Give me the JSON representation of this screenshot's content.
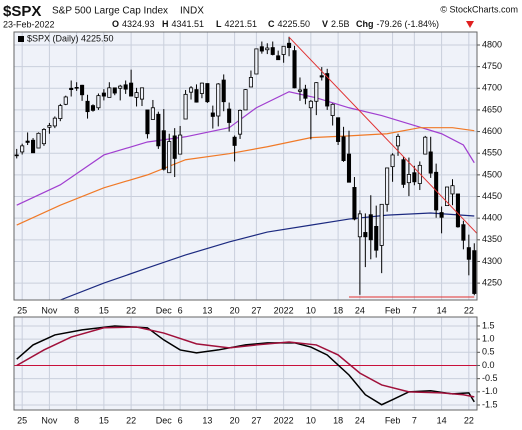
{
  "header": {
    "symbol": "$SPX",
    "name": "S&P 500 Large Cap Index",
    "exchange": "INDX",
    "copyright": "© StockCharts.com",
    "date": "23-Feb-2022",
    "quote": [
      {
        "label": "O",
        "value": "4324.93"
      },
      {
        "label": "H",
        "value": "4341.51"
      },
      {
        "label": "L",
        "value": "4221.51"
      },
      {
        "label": "C",
        "value": "4225.50"
      },
      {
        "label": "V",
        "value": "2.5B"
      },
      {
        "label": "Chg",
        "value": "-79.26 (-1.84%)"
      }
    ]
  },
  "chart_data": [
    {
      "type": "candlestick",
      "legend": "$SPX (Daily) 4225.50",
      "color": "#000000",
      "x": [
        0,
        1,
        2,
        3,
        4,
        5,
        6,
        7,
        8,
        9,
        10,
        11,
        12,
        13,
        14,
        15,
        16,
        17,
        18,
        19,
        20,
        21,
        22,
        23,
        24,
        25,
        26,
        27,
        28,
        29,
        30,
        31,
        32,
        33,
        34,
        35,
        36,
        37,
        38,
        39,
        40,
        41,
        42,
        43,
        44,
        45,
        46,
        47,
        48,
        49,
        50,
        51,
        52,
        53,
        54,
        55,
        56,
        57,
        58,
        59,
        60,
        61,
        62,
        63,
        64,
        65,
        66,
        67,
        68,
        69,
        70,
        71,
        72,
        73,
        74,
        75,
        76,
        77,
        78,
        79,
        80,
        81,
        82,
        83,
        84
      ],
      "open": [
        4546,
        4553,
        4578,
        4580,
        4562,
        4572,
        4610,
        4613,
        4630,
        4663,
        4700,
        4701,
        4707,
        4670,
        4660,
        4655,
        4689,
        4679,
        4701,
        4700,
        4708,
        4712,
        4679,
        4675,
        4650,
        4628,
        4640,
        4602,
        4505,
        4590,
        4548,
        4629,
        4691,
        4697,
        4688,
        4711,
        4643,
        4636,
        4719,
        4652,
        4587,
        4594,
        4650,
        4703,
        4733,
        4796,
        4789,
        4794,
        4775,
        4778,
        4804,
        4787,
        4693,
        4698,
        4655,
        4670,
        4729,
        4734,
        4637,
        4632,
        4588,
        4548,
        4471,
        4357,
        4367,
        4408,
        4381,
        4337,
        4432,
        4519,
        4567,
        4535,
        4482,
        4505,
        4480,
        4548,
        4553,
        4506,
        4413,
        4429,
        4456,
        4456,
        4385,
        4332,
        4325
      ],
      "high": [
        4560,
        4572,
        4598,
        4585,
        4598,
        4608,
        4620,
        4635,
        4664,
        4683,
        4718,
        4714,
        4708,
        4685,
        4663,
        4688,
        4698,
        4714,
        4701,
        4708,
        4718,
        4743,
        4701,
        4702,
        4650,
        4673,
        4646,
        4652,
        4595,
        4608,
        4613,
        4696,
        4705,
        4709,
        4713,
        4711,
        4660,
        4712,
        4732,
        4667,
        4591,
        4651,
        4698,
        4741,
        4791,
        4808,
        4804,
        4808,
        4787,
        4797,
        4819,
        4798,
        4725,
        4708,
        4673,
        4714,
        4749,
        4745,
        4665,
        4632,
        4611,
        4602,
        4495,
        4418,
        4411,
        4453,
        4429,
        4432,
        4516,
        4550,
        4595,
        4542,
        4540,
        4521,
        4531,
        4590,
        4588,
        4526,
        4427,
        4472,
        4490,
        4456,
        4394,
        4362,
        4342
      ],
      "low": [
        4538,
        4547,
        4569,
        4551,
        4562,
        4567,
        4595,
        4608,
        4624,
        4661,
        4681,
        4694,
        4671,
        4630,
        4646,
        4650,
        4672,
        4679,
        4684,
        4672,
        4687,
        4682,
        4658,
        4659,
        4584,
        4628,
        4560,
        4510,
        4505,
        4495,
        4547,
        4629,
        4674,
        4667,
        4677,
        4666,
        4607,
        4612,
        4647,
        4600,
        4531,
        4583,
        4651,
        4703,
        4733,
        4780,
        4779,
        4776,
        4766,
        4759,
        4774,
        4700,
        4671,
        4663,
        4582,
        4638,
        4718,
        4650,
        4614,
        4569,
        4530,
        4483,
        4395,
        4223,
        4287,
        4305,
        4309,
        4273,
        4415,
        4484,
        4544,
        4470,
        4451,
        4476,
        4465,
        4548,
        4493,
        4401,
        4365,
        4429,
        4430,
        4378,
        4328,
        4268,
        4222
      ],
      "close": [
        4545,
        4567,
        4575,
        4551,
        4596,
        4605,
        4614,
        4631,
        4660,
        4680,
        4697,
        4702,
        4685,
        4646,
        4649,
        4683,
        4682,
        4701,
        4689,
        4705,
        4698,
        4682,
        4690,
        4701,
        4595,
        4655,
        4567,
        4513,
        4577,
        4538,
        4592,
        4686,
        4701,
        4668,
        4712,
        4669,
        4635,
        4710,
        4669,
        4621,
        4568,
        4649,
        4697,
        4725,
        4791,
        4786,
        4793,
        4778,
        4766,
        4797,
        4794,
        4701,
        4696,
        4677,
        4670,
        4713,
        4726,
        4659,
        4663,
        4577,
        4533,
        4483,
        4398,
        4410,
        4357,
        4350,
        4326,
        4432,
        4516,
        4546,
        4589,
        4478,
        4501,
        4484,
        4522,
        4587,
        4504,
        4419,
        4402,
        4472,
        4475,
        4380,
        4349,
        4305,
        4226
      ],
      "overlays": [
        {
          "color": "#a13fd0",
          "x": [
            0,
            8,
            16,
            24,
            31,
            39,
            44,
            50,
            55,
            61,
            67,
            72,
            78,
            82,
            84
          ],
          "values": [
            4430,
            4477,
            4546,
            4576,
            4588,
            4609,
            4655,
            4692,
            4678,
            4655,
            4637,
            4618,
            4595,
            4569,
            4528
          ]
        },
        {
          "color": "#f07a28",
          "x": [
            0,
            8,
            16,
            24,
            31,
            39,
            46,
            54,
            61,
            68,
            74,
            80,
            84
          ],
          "values": [
            4384,
            4430,
            4470,
            4500,
            4535,
            4549,
            4565,
            4586,
            4590,
            4595,
            4609,
            4609,
            4602
          ]
        },
        {
          "color": "#1c2a80",
          "x": [
            8,
            16,
            24,
            31,
            39,
            46,
            54,
            61,
            68,
            76,
            84
          ],
          "values": [
            4211,
            4250,
            4285,
            4315,
            4345,
            4368,
            4384,
            4398,
            4407,
            4412,
            4405
          ]
        }
      ],
      "trendlines": [
        {
          "color": "#e03030",
          "x": [
            50,
            86
          ],
          "values": [
            4818,
            4345
          ]
        },
        {
          "color": "#e03030",
          "x": [
            61,
            84
          ],
          "values": [
            4218,
            4218
          ]
        }
      ],
      "xlim": [
        -0.5,
        84.5
      ],
      "xticks": [
        {
          "value": 1,
          "label": "25"
        },
        {
          "value": 6,
          "label": "Nov"
        },
        {
          "value": 11,
          "label": "8"
        },
        {
          "value": 16,
          "label": "15"
        },
        {
          "value": 21,
          "label": "22"
        },
        {
          "value": 27,
          "label": "Dec"
        },
        {
          "value": 30,
          "label": "6"
        },
        {
          "value": 35,
          "label": "13"
        },
        {
          "value": 40,
          "label": "20"
        },
        {
          "value": 44,
          "label": "27"
        },
        {
          "value": 49,
          "label": "2022"
        },
        {
          "value": 54,
          "label": "10"
        },
        {
          "value": 59,
          "label": "18"
        },
        {
          "value": 63,
          "label": "24"
        },
        {
          "value": 69,
          "label": "Feb"
        },
        {
          "value": 73,
          "label": "7"
        },
        {
          "value": 78,
          "label": "14"
        },
        {
          "value": 83,
          "label": "22"
        }
      ],
      "ylim": [
        4211,
        4830
      ],
      "yticks": [
        4250,
        4300,
        4350,
        4400,
        4450,
        4500,
        4550,
        4600,
        4650,
        4700,
        4750,
        4800
      ],
      "grid": true
    },
    {
      "type": "line",
      "series": [
        {
          "color": "#000000",
          "x": [
            0,
            3,
            7,
            12,
            18,
            24,
            27,
            30,
            33,
            37,
            42,
            46,
            51,
            54,
            57,
            61,
            64,
            67,
            69,
            72,
            76,
            80,
            83,
            84
          ],
          "values": [
            0.24,
            0.78,
            1.16,
            1.35,
            1.5,
            1.43,
            0.97,
            0.59,
            0.48,
            0.59,
            0.78,
            0.86,
            0.86,
            0.7,
            0.4,
            -0.36,
            -1.11,
            -1.49,
            -1.3,
            -1.0,
            -0.96,
            -1.08,
            -1.04,
            -1.38
          ]
        },
        {
          "color": "#a0103a",
          "x": [
            0,
            5,
            10,
            16,
            22,
            27,
            33,
            39,
            44,
            50,
            55,
            59,
            63,
            67,
            72,
            78,
            82,
            84
          ],
          "values": [
            0,
            0.59,
            1.08,
            1.43,
            1.46,
            1.23,
            0.82,
            0.67,
            0.78,
            0.89,
            0.78,
            0.4,
            -0.29,
            -0.74,
            -1.0,
            -1.04,
            -1.11,
            -1.19
          ]
        }
      ],
      "reference_line": {
        "value": 0,
        "color": "#c8103a"
      },
      "xlim": [
        -0.5,
        84.5
      ],
      "xticks": [
        {
          "value": 1,
          "label": "25"
        },
        {
          "value": 6,
          "label": "Nov"
        },
        {
          "value": 11,
          "label": "8"
        },
        {
          "value": 16,
          "label": "15"
        },
        {
          "value": 21,
          "label": "22"
        },
        {
          "value": 27,
          "label": "Dec"
        },
        {
          "value": 30,
          "label": "6"
        },
        {
          "value": 35,
          "label": "13"
        },
        {
          "value": 40,
          "label": "20"
        },
        {
          "value": 44,
          "label": "27"
        },
        {
          "value": 49,
          "label": "2022"
        },
        {
          "value": 54,
          "label": "10"
        },
        {
          "value": 59,
          "label": "18"
        },
        {
          "value": 63,
          "label": "24"
        },
        {
          "value": 69,
          "label": "Feb"
        },
        {
          "value": 73,
          "label": "7"
        },
        {
          "value": 78,
          "label": "14"
        },
        {
          "value": 83,
          "label": "22"
        }
      ],
      "ylim": [
        -1.69,
        1.84
      ],
      "yticks": [
        1.5,
        {
          "value": 1.0,
          "label": "1.0"
        },
        0.5,
        {
          "value": 0.0,
          "label": "0.0"
        },
        -0.5,
        {
          "value": -1.0,
          "label": "-1.0"
        },
        -1.5
      ],
      "grid": true
    }
  ]
}
